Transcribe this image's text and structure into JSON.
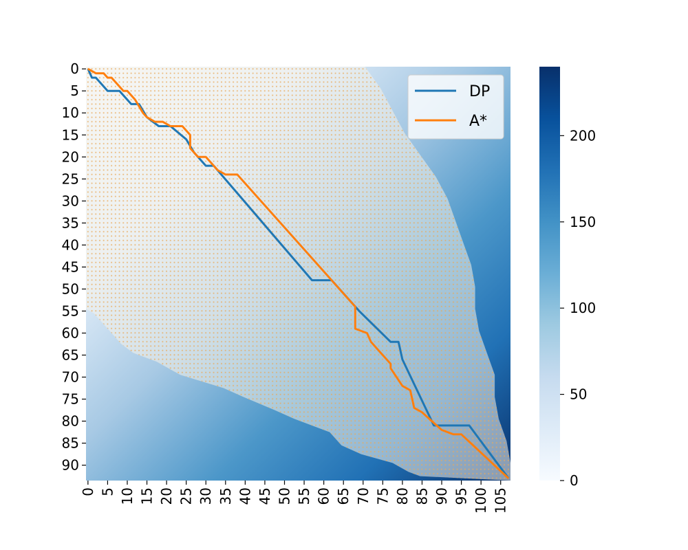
{
  "chart_data": {
    "type": "heatmap",
    "title": "",
    "xlabel": "",
    "ylabel": "",
    "grid": {
      "cols": 108,
      "rows": 94
    },
    "xticks": [
      0,
      5,
      10,
      15,
      20,
      25,
      30,
      35,
      40,
      45,
      50,
      55,
      60,
      65,
      70,
      75,
      80,
      85,
      90,
      95,
      100,
      105
    ],
    "yticks": [
      0,
      5,
      10,
      15,
      20,
      25,
      30,
      35,
      40,
      45,
      50,
      55,
      60,
      65,
      70,
      75,
      80,
      85,
      90
    ],
    "colorbar": {
      "min": 0,
      "max": 240,
      "ticks": [
        0,
        50,
        100,
        150,
        200
      ],
      "colormap": "Blues"
    },
    "colors": {
      "dp": "#1f77b4",
      "astar": "#ff7f0e",
      "explored_dots": "#e8a95a"
    },
    "legend": {
      "placement": "upper right",
      "entries": [
        "DP",
        "A*"
      ]
    },
    "explored_region": {
      "description": "orange dots mark cells expanded by A*",
      "right_boundary": [
        [
          0,
          70
        ],
        [
          5,
          74
        ],
        [
          10,
          77
        ],
        [
          15,
          80
        ],
        [
          20,
          84
        ],
        [
          25,
          88
        ],
        [
          30,
          91
        ],
        [
          35,
          93
        ],
        [
          40,
          95
        ],
        [
          45,
          97
        ],
        [
          50,
          98
        ],
        [
          55,
          98
        ],
        [
          60,
          99
        ],
        [
          65,
          101
        ],
        [
          70,
          103
        ],
        [
          75,
          103
        ],
        [
          80,
          104
        ],
        [
          85,
          106
        ],
        [
          90,
          107
        ],
        [
          93,
          107
        ]
      ],
      "left_boundary": [
        [
          0,
          0
        ],
        [
          55,
          0
        ],
        [
          56,
          2
        ],
        [
          60,
          6
        ],
        [
          63,
          9
        ],
        [
          65,
          12
        ],
        [
          67,
          18
        ],
        [
          70,
          24
        ],
        [
          73,
          35
        ],
        [
          75,
          40
        ],
        [
          78,
          48
        ],
        [
          80,
          53
        ],
        [
          83,
          62
        ],
        [
          86,
          65
        ],
        [
          88,
          70
        ],
        [
          90,
          78
        ],
        [
          92,
          82
        ],
        [
          93,
          85
        ]
      ]
    },
    "series": [
      {
        "name": "DP",
        "points": [
          [
            0,
            0
          ],
          [
            2,
            1
          ],
          [
            2,
            2
          ],
          [
            5,
            5
          ],
          [
            5,
            8
          ],
          [
            8,
            11
          ],
          [
            8,
            13
          ],
          [
            11,
            15
          ],
          [
            13,
            18
          ],
          [
            13,
            21
          ],
          [
            16,
            25
          ],
          [
            19,
            27
          ],
          [
            22,
            30
          ],
          [
            22,
            32
          ],
          [
            48,
            57
          ],
          [
            48,
            62
          ],
          [
            55,
            69
          ],
          [
            62,
            77
          ],
          [
            62,
            79
          ],
          [
            66,
            80
          ],
          [
            81,
            88
          ],
          [
            81,
            97
          ],
          [
            93,
            107
          ]
        ]
      },
      {
        "name": "A*",
        "points": [
          [
            0,
            0
          ],
          [
            1,
            2
          ],
          [
            1,
            4
          ],
          [
            2,
            5
          ],
          [
            2,
            6
          ],
          [
            5,
            9
          ],
          [
            5,
            10
          ],
          [
            7,
            12
          ],
          [
            10,
            14
          ],
          [
            11,
            15
          ],
          [
            12,
            17
          ],
          [
            12,
            19
          ],
          [
            13,
            21
          ],
          [
            13,
            24
          ],
          [
            15,
            26
          ],
          [
            18,
            26
          ],
          [
            20,
            28
          ],
          [
            20,
            30
          ],
          [
            23,
            33
          ],
          [
            24,
            35
          ],
          [
            24,
            38
          ],
          [
            35,
            49
          ],
          [
            36,
            50
          ],
          [
            54,
            68
          ],
          [
            59,
            68
          ],
          [
            60,
            71
          ],
          [
            62,
            72
          ],
          [
            64,
            74
          ],
          [
            67,
            77
          ],
          [
            68,
            77
          ],
          [
            72,
            80
          ],
          [
            73,
            82
          ],
          [
            77,
            83
          ],
          [
            78,
            85
          ],
          [
            82,
            90
          ],
          [
            83,
            93
          ],
          [
            83,
            95
          ],
          [
            93,
            107
          ]
        ]
      }
    ]
  }
}
